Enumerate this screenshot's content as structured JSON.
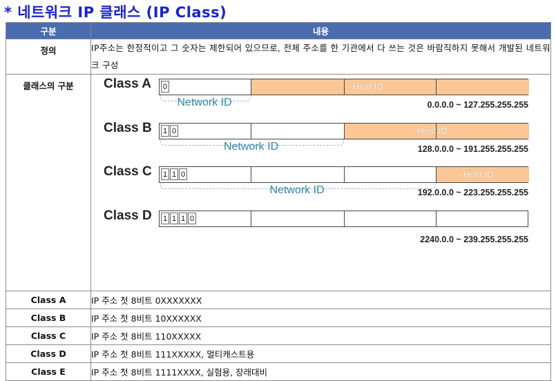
{
  "title": "* 네트워크 IP 클래스 (IP Class)",
  "table": {
    "headers": [
      "구분",
      "내용"
    ],
    "definition": {
      "label": "정의",
      "text": "IP주소는 한정적이고 그 숫자는 제한되어 있으므로, 전체 주소를 한 기관에서 다 쓰는 것은 바람직하지 못해서 개발된 네트워크 구성"
    },
    "classes_label": "클래스의 구분",
    "diagram": {
      "classes": [
        {
          "name": "Class A",
          "bits": [
            "0"
          ],
          "host_label": "Host ID",
          "network_label": "Network ID",
          "range": "0.0.0.0 ~ 127.255.255.255"
        },
        {
          "name": "Class B",
          "bits": [
            "1",
            "0"
          ],
          "host_label": "Host ID",
          "network_label": "Network ID",
          "range": "128.0.0.0 ~ 191.255.255.255"
        },
        {
          "name": "Class C",
          "bits": [
            "1",
            "1",
            "0"
          ],
          "host_label": "Host ID",
          "network_label": "Network ID",
          "range": "192.0.0.0 ~ 223.255.255.255"
        },
        {
          "name": "Class D",
          "bits": [
            "1",
            "1",
            "1",
            "0"
          ],
          "range": "2240.0.0 ~ 239.255.255.255"
        }
      ]
    },
    "rows": [
      {
        "label": "Class A",
        "text": "IP 주소 첫 8비트 0XXXXXXX"
      },
      {
        "label": "Class B",
        "text": "IP 주소 첫 8비트 10XXXXXX"
      },
      {
        "label": "Class C",
        "text": "IP 주소 첫 8비트 110XXXXX"
      },
      {
        "label": "Class D",
        "text": "IP 주소 첫 8비트 111XXXXX, 멀티캐스트용"
      },
      {
        "label": "Class E",
        "text": "IP 주소 첫 8비트 1111XXXX, 실험용, 장래대비"
      }
    ]
  },
  "colors": {
    "title": "#1a23c8",
    "header_bg": "#4a6cb0",
    "host_fill": "#fac896",
    "network_label": "#2e86a8"
  }
}
